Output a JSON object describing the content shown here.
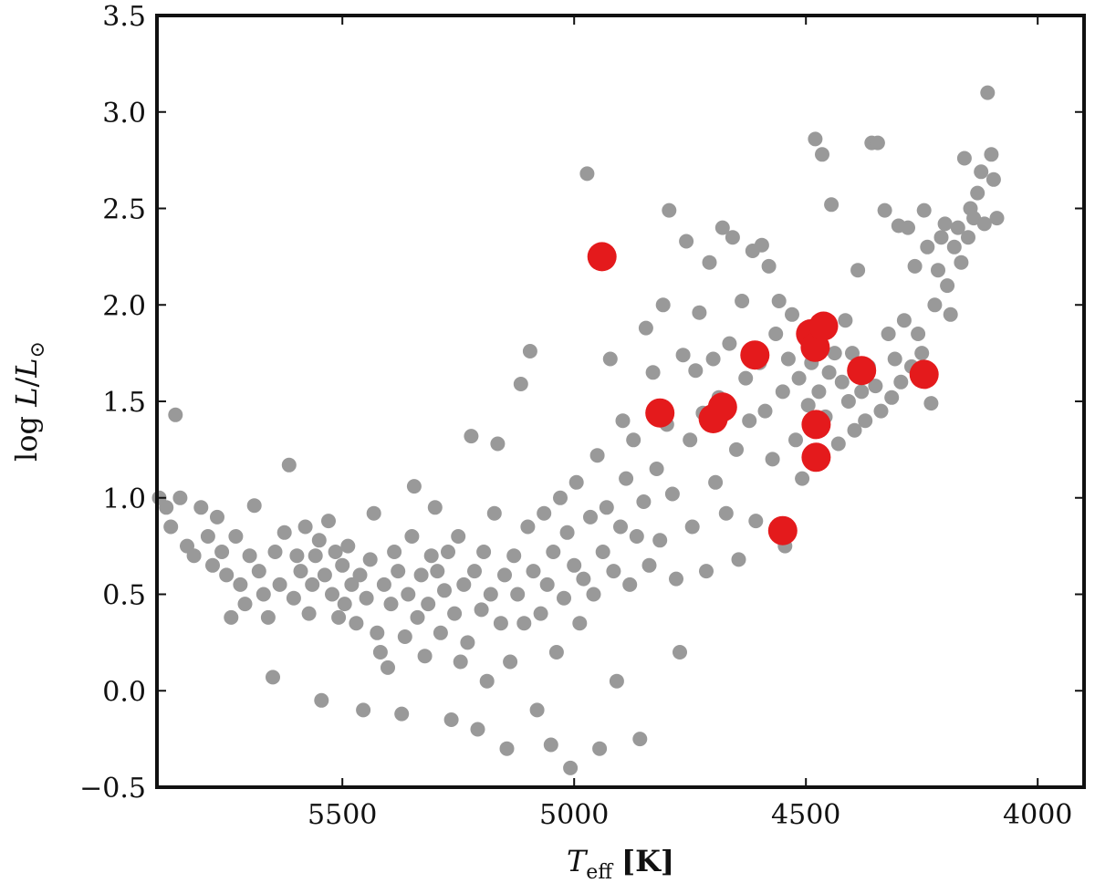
{
  "chart_data": {
    "type": "scatter",
    "title": "",
    "xlabel": {
      "symbol": "T",
      "subscript": "eff",
      "unit": "[K]"
    },
    "ylabel": {
      "prefix": "log ",
      "symbol": "L",
      "separator": "/",
      "symbol2": "L",
      "subscript": "⊙"
    },
    "xlim": [
      5900,
      3900
    ],
    "ylim": [
      -0.5,
      3.5
    ],
    "x_reversed": true,
    "x_ticks": [
      5500,
      5000,
      4500,
      4000
    ],
    "x_tick_labels": [
      "5500",
      "5000",
      "4500",
      "4000"
    ],
    "y_ticks": [
      -0.5,
      0.0,
      0.5,
      1.0,
      1.5,
      2.0,
      2.5,
      3.0,
      3.5
    ],
    "y_tick_labels": [
      "−0.5",
      "0.0",
      "0.5",
      "1.0",
      "1.5",
      "2.0",
      "2.5",
      "3.0",
      "3.5"
    ],
    "grid": false,
    "legend": "none",
    "series": [
      {
        "color": "#999999",
        "marker_size": "small",
        "points": [
          [
            5895,
            1.0
          ],
          [
            5880,
            0.95
          ],
          [
            5870,
            0.85
          ],
          [
            5860,
            1.43
          ],
          [
            5850,
            1.0
          ],
          [
            5835,
            0.75
          ],
          [
            5820,
            0.7
          ],
          [
            5805,
            0.95
          ],
          [
            5790,
            0.8
          ],
          [
            5780,
            0.65
          ],
          [
            5770,
            0.9
          ],
          [
            5760,
            0.72
          ],
          [
            5750,
            0.6
          ],
          [
            5740,
            0.38
          ],
          [
            5730,
            0.8
          ],
          [
            5720,
            0.55
          ],
          [
            5710,
            0.45
          ],
          [
            5700,
            0.7
          ],
          [
            5690,
            0.96
          ],
          [
            5680,
            0.62
          ],
          [
            5670,
            0.5
          ],
          [
            5660,
            0.38
          ],
          [
            5650,
            0.07
          ],
          [
            5645,
            0.72
          ],
          [
            5635,
            0.55
          ],
          [
            5625,
            0.82
          ],
          [
            5615,
            1.17
          ],
          [
            5605,
            0.48
          ],
          [
            5598,
            0.7
          ],
          [
            5590,
            0.62
          ],
          [
            5580,
            0.85
          ],
          [
            5572,
            0.4
          ],
          [
            5565,
            0.55
          ],
          [
            5558,
            0.7
          ],
          [
            5550,
            0.78
          ],
          [
            5545,
            -0.05
          ],
          [
            5538,
            0.6
          ],
          [
            5530,
            0.88
          ],
          [
            5522,
            0.5
          ],
          [
            5515,
            0.72
          ],
          [
            5508,
            0.38
          ],
          [
            5500,
            0.65
          ],
          [
            5495,
            0.45
          ],
          [
            5488,
            0.75
          ],
          [
            5480,
            0.55
          ],
          [
            5470,
            0.35
          ],
          [
            5462,
            0.6
          ],
          [
            5455,
            -0.1
          ],
          [
            5448,
            0.48
          ],
          [
            5440,
            0.68
          ],
          [
            5432,
            0.92
          ],
          [
            5425,
            0.3
          ],
          [
            5418,
            0.2
          ],
          [
            5410,
            0.55
          ],
          [
            5402,
            0.12
          ],
          [
            5395,
            0.45
          ],
          [
            5388,
            0.72
          ],
          [
            5380,
            0.62
          ],
          [
            5372,
            -0.12
          ],
          [
            5365,
            0.28
          ],
          [
            5358,
            0.5
          ],
          [
            5350,
            0.8
          ],
          [
            5345,
            1.06
          ],
          [
            5338,
            0.38
          ],
          [
            5330,
            0.6
          ],
          [
            5322,
            0.18
          ],
          [
            5315,
            0.45
          ],
          [
            5308,
            0.7
          ],
          [
            5300,
            0.95
          ],
          [
            5295,
            0.62
          ],
          [
            5288,
            0.3
          ],
          [
            5280,
            0.52
          ],
          [
            5272,
            0.72
          ],
          [
            5265,
            -0.15
          ],
          [
            5258,
            0.4
          ],
          [
            5250,
            0.8
          ],
          [
            5245,
            0.15
          ],
          [
            5238,
            0.55
          ],
          [
            5230,
            0.25
          ],
          [
            5222,
            1.32
          ],
          [
            5215,
            0.62
          ],
          [
            5208,
            -0.2
          ],
          [
            5200,
            0.42
          ],
          [
            5195,
            0.72
          ],
          [
            5188,
            0.05
          ],
          [
            5180,
            0.5
          ],
          [
            5172,
            0.92
          ],
          [
            5165,
            1.28
          ],
          [
            5158,
            0.35
          ],
          [
            5150,
            0.6
          ],
          [
            5145,
            -0.3
          ],
          [
            5138,
            0.15
          ],
          [
            5130,
            0.7
          ],
          [
            5122,
            0.5
          ],
          [
            5115,
            1.59
          ],
          [
            5108,
            0.35
          ],
          [
            5100,
            0.85
          ],
          [
            5095,
            1.76
          ],
          [
            5088,
            0.62
          ],
          [
            5080,
            -0.1
          ],
          [
            5072,
            0.4
          ],
          [
            5065,
            0.92
          ],
          [
            5058,
            0.55
          ],
          [
            5050,
            -0.28
          ],
          [
            5045,
            0.72
          ],
          [
            5038,
            0.2
          ],
          [
            5030,
            1.0
          ],
          [
            5022,
            0.48
          ],
          [
            5015,
            0.82
          ],
          [
            5008,
            -0.4
          ],
          [
            5000,
            0.65
          ],
          [
            4995,
            1.08
          ],
          [
            4988,
            0.35
          ],
          [
            4980,
            0.58
          ],
          [
            4972,
            2.68
          ],
          [
            4965,
            0.9
          ],
          [
            4958,
            0.5
          ],
          [
            4950,
            1.22
          ],
          [
            4945,
            -0.3
          ],
          [
            4938,
            0.72
          ],
          [
            4930,
            0.95
          ],
          [
            4922,
            1.72
          ],
          [
            4915,
            0.62
          ],
          [
            4908,
            0.05
          ],
          [
            4900,
            0.85
          ],
          [
            4895,
            1.4
          ],
          [
            4888,
            1.1
          ],
          [
            4880,
            0.55
          ],
          [
            4872,
            1.3
          ],
          [
            4865,
            0.8
          ],
          [
            4858,
            -0.25
          ],
          [
            4850,
            0.98
          ],
          [
            4845,
            1.88
          ],
          [
            4838,
            0.65
          ],
          [
            4830,
            1.65
          ],
          [
            4822,
            1.15
          ],
          [
            4815,
            0.78
          ],
          [
            4808,
            2.0
          ],
          [
            4800,
            1.38
          ],
          [
            4795,
            2.49
          ],
          [
            4788,
            1.02
          ],
          [
            4780,
            0.58
          ],
          [
            4772,
            0.2
          ],
          [
            4765,
            1.74
          ],
          [
            4758,
            2.33
          ],
          [
            4750,
            1.3
          ],
          [
            4745,
            0.85
          ],
          [
            4738,
            1.66
          ],
          [
            4730,
            1.96
          ],
          [
            4722,
            1.44
          ],
          [
            4715,
            0.62
          ],
          [
            4708,
            2.22
          ],
          [
            4700,
            1.72
          ],
          [
            4695,
            1.08
          ],
          [
            4688,
            1.52
          ],
          [
            4680,
            2.4
          ],
          [
            4672,
            0.92
          ],
          [
            4665,
            1.8
          ],
          [
            4658,
            2.35
          ],
          [
            4650,
            1.25
          ],
          [
            4645,
            0.68
          ],
          [
            4638,
            2.02
          ],
          [
            4630,
            1.62
          ],
          [
            4622,
            1.4
          ],
          [
            4615,
            2.28
          ],
          [
            4608,
            0.88
          ],
          [
            4600,
            1.7
          ],
          [
            4595,
            2.31
          ],
          [
            4588,
            1.45
          ],
          [
            4580,
            2.2
          ],
          [
            4572,
            1.2
          ],
          [
            4565,
            1.85
          ],
          [
            4558,
            2.02
          ],
          [
            4550,
            1.55
          ],
          [
            4545,
            0.75
          ],
          [
            4538,
            1.72
          ],
          [
            4530,
            1.95
          ],
          [
            4522,
            1.3
          ],
          [
            4515,
            1.62
          ],
          [
            4508,
            1.1
          ],
          [
            4500,
            1.82
          ],
          [
            4495,
            1.48
          ],
          [
            4488,
            1.7
          ],
          [
            4480,
            2.86
          ],
          [
            4472,
            1.55
          ],
          [
            4465,
            2.78
          ],
          [
            4458,
            1.42
          ],
          [
            4450,
            1.65
          ],
          [
            4445,
            2.52
          ],
          [
            4438,
            1.75
          ],
          [
            4430,
            1.28
          ],
          [
            4422,
            1.6
          ],
          [
            4415,
            1.92
          ],
          [
            4408,
            1.5
          ],
          [
            4400,
            1.75
          ],
          [
            4395,
            1.35
          ],
          [
            4388,
            2.18
          ],
          [
            4380,
            1.55
          ],
          [
            4372,
            1.4
          ],
          [
            4365,
            1.68
          ],
          [
            4358,
            2.84
          ],
          [
            4350,
            1.58
          ],
          [
            4345,
            2.84
          ],
          [
            4338,
            1.45
          ],
          [
            4330,
            2.49
          ],
          [
            4322,
            1.85
          ],
          [
            4315,
            1.52
          ],
          [
            4308,
            1.72
          ],
          [
            4300,
            2.41
          ],
          [
            4295,
            1.6
          ],
          [
            4288,
            1.92
          ],
          [
            4280,
            2.4
          ],
          [
            4272,
            1.68
          ],
          [
            4265,
            2.2
          ],
          [
            4258,
            1.85
          ],
          [
            4250,
            1.75
          ],
          [
            4245,
            2.49
          ],
          [
            4238,
            2.3
          ],
          [
            4230,
            1.49
          ],
          [
            4222,
            2.0
          ],
          [
            4215,
            2.18
          ],
          [
            4208,
            2.35
          ],
          [
            4200,
            2.42
          ],
          [
            4195,
            2.1
          ],
          [
            4188,
            1.95
          ],
          [
            4180,
            2.3
          ],
          [
            4172,
            2.4
          ],
          [
            4165,
            2.22
          ],
          [
            4158,
            2.76
          ],
          [
            4150,
            2.35
          ],
          [
            4145,
            2.5
          ],
          [
            4138,
            2.45
          ],
          [
            4130,
            2.58
          ],
          [
            4122,
            2.69
          ],
          [
            4115,
            2.42
          ],
          [
            4108,
            3.1
          ],
          [
            4100,
            2.78
          ],
          [
            4095,
            2.65
          ],
          [
            4088,
            2.45
          ]
        ]
      },
      {
        "color": "#e41a1c",
        "marker_size": "large",
        "points": [
          [
            4940,
            2.25
          ],
          [
            4815,
            1.44
          ],
          [
            4700,
            1.41
          ],
          [
            4680,
            1.47
          ],
          [
            4610,
            1.74
          ],
          [
            4550,
            0.83
          ],
          [
            4490,
            1.85
          ],
          [
            4480,
            1.78
          ],
          [
            4462,
            1.89
          ],
          [
            4478,
            1.38
          ],
          [
            4478,
            1.21
          ],
          [
            4380,
            1.66
          ],
          [
            4245,
            1.64
          ]
        ]
      }
    ]
  }
}
